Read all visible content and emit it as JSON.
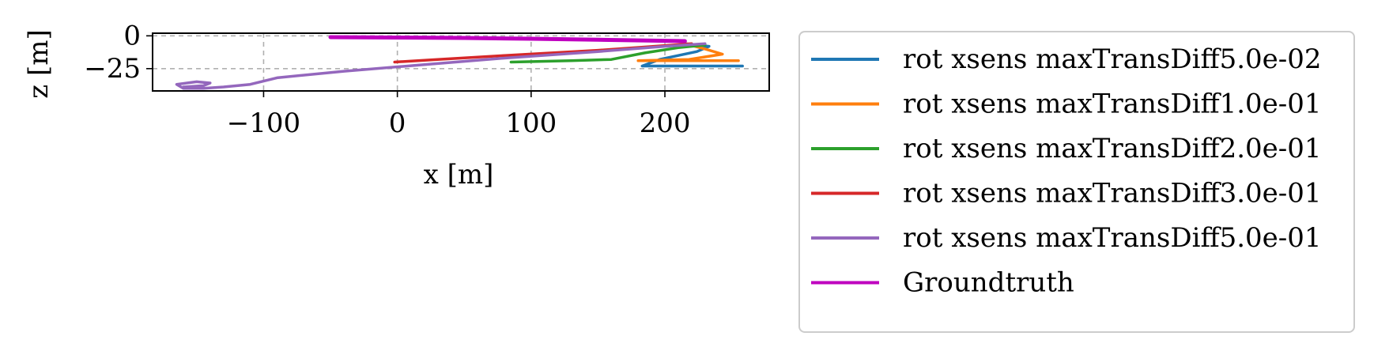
{
  "chart_data": {
    "type": "line",
    "title": "",
    "xlabel": "x [m]",
    "ylabel": "z [m]",
    "xlim": [
      -183,
      278
    ],
    "ylim": [
      -42,
      2
    ],
    "xticks": [
      {
        "value": -100,
        "label": "−100"
      },
      {
        "value": 0,
        "label": "0"
      },
      {
        "value": 100,
        "label": "100"
      },
      {
        "value": 200,
        "label": "200"
      }
    ],
    "yticks": [
      {
        "value": 0,
        "label": "0"
      },
      {
        "value": -25,
        "label": "−25"
      }
    ],
    "grid": true,
    "legend_position": "outside-right",
    "series": [
      {
        "name": "rot xsens maxTransDiff5.0e-02",
        "color": "#1f77b4",
        "x": [
          215,
          233,
          224,
          196,
          183,
          258
        ],
        "y": [
          -6,
          -8,
          -12,
          -18,
          -23,
          -23
        ]
      },
      {
        "name": "rot xsens maxTransDiff1.0e-01",
        "color": "#ff7f0e",
        "x": [
          215,
          230,
          243,
          218,
          180,
          255
        ],
        "y": [
          -6,
          -10,
          -14,
          -18,
          -19,
          -19
        ]
      },
      {
        "name": "rot xsens maxTransDiff2.0e-01",
        "color": "#2ca02c",
        "x": [
          230,
          210,
          185,
          160,
          130,
          85
        ],
        "y": [
          -7,
          -9,
          -13,
          -18,
          -19,
          -20
        ]
      },
      {
        "name": "rot xsens maxTransDiff3.0e-01",
        "color": "#d62728",
        "x": [
          220,
          150,
          80,
          30,
          -2
        ],
        "y": [
          -6,
          -11,
          -15,
          -18,
          -20
        ]
      },
      {
        "name": "rot xsens maxTransDiff5.0e-01",
        "color": "#9467bd",
        "x": [
          230,
          200,
          150,
          80,
          20,
          -40,
          -90,
          -110,
          -130,
          -145,
          -160,
          -165,
          -150,
          -140,
          -145,
          -160,
          -150
        ],
        "y": [
          -6,
          -8,
          -12,
          -17,
          -22,
          -27,
          -32,
          -37,
          -39,
          -40,
          -40,
          -37,
          -35,
          -36,
          -38,
          -39,
          -39
        ]
      },
      {
        "name": "Groundtruth",
        "color": "#bf00bf",
        "x": [
          -50,
          0,
          50,
          100,
          150,
          215
        ],
        "y": [
          -1,
          -1.3,
          -1.6,
          -2.2,
          -3,
          -4
        ]
      }
    ]
  }
}
